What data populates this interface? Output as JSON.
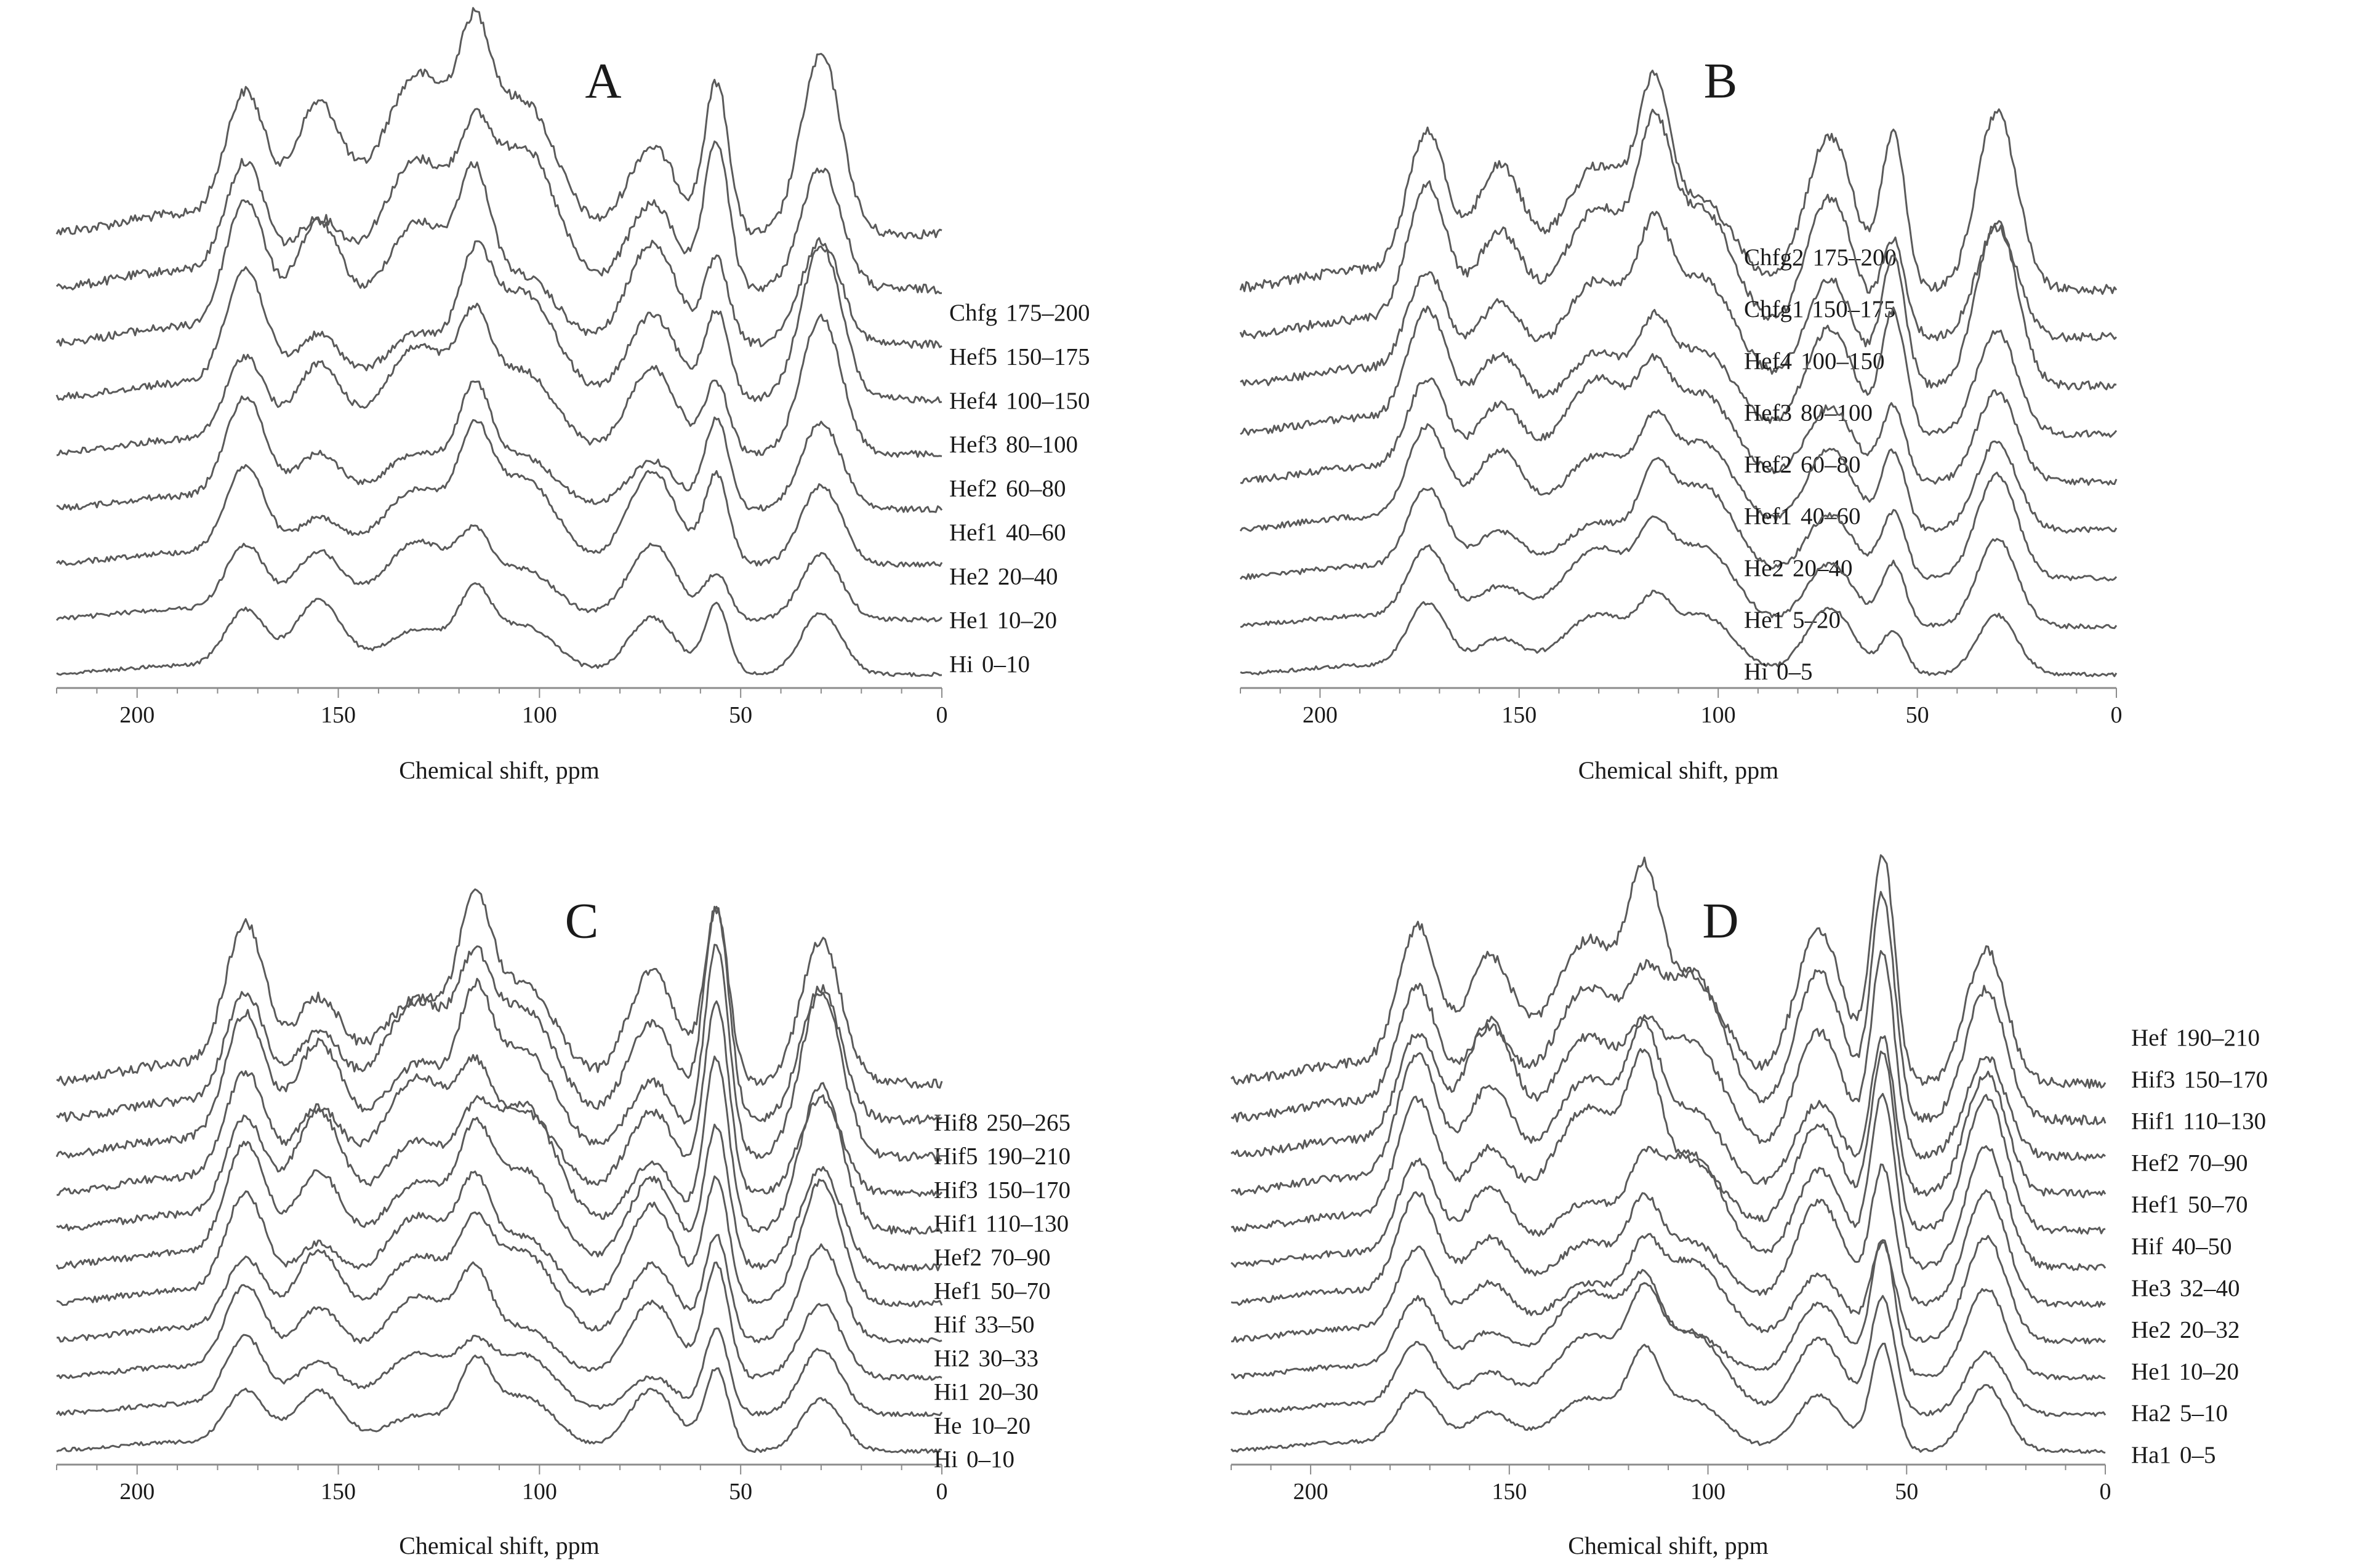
{
  "figure": {
    "xlabel": "Chemical shift, ppm",
    "x_ticks": [
      200,
      150,
      100,
      50,
      0
    ]
  },
  "colors": {
    "trace": "#5a5a5a",
    "axis": "#8c8c8c",
    "text": "#1a1a1a"
  },
  "chart_data": [
    {
      "type": "line",
      "panel": "A",
      "title": "A",
      "xlabel": "Chemical shift, ppm",
      "xlim": [
        220,
        0
      ],
      "x_ticks": [
        200,
        150,
        100,
        50,
        0
      ],
      "peaks_ppm": [
        173,
        155,
        130,
        116,
        104,
        72,
        56,
        30
      ],
      "series": [
        {
          "name": "Chfg",
          "range": "175–200"
        },
        {
          "name": "Hef5",
          "range": "150–175"
        },
        {
          "name": "Hef4",
          "range": "100–150"
        },
        {
          "name": "Hef3",
          "range": "80–100"
        },
        {
          "name": "Hef2",
          "range": "60–80"
        },
        {
          "name": "Hef1",
          "range": "40–60"
        },
        {
          "name": "He2",
          "range": "20–40"
        },
        {
          "name": "He1",
          "range": "10–20"
        },
        {
          "name": "Hi",
          "range": "0–10"
        }
      ]
    },
    {
      "type": "line",
      "panel": "B",
      "title": "B",
      "xlabel": "Chemical shift, ppm",
      "xlim": [
        220,
        0
      ],
      "x_ticks": [
        200,
        150,
        100,
        50,
        0
      ],
      "peaks_ppm": [
        173,
        155,
        130,
        116,
        104,
        72,
        56,
        30
      ],
      "series": [
        {
          "name": "Chfg2",
          "range": "175–200"
        },
        {
          "name": "Chfg1",
          "range": "150–175"
        },
        {
          "name": "Hef4",
          "range": "100–150"
        },
        {
          "name": "Hef3",
          "range": "80–100"
        },
        {
          "name": "Hef2",
          "range": "60–80"
        },
        {
          "name": "Hef1",
          "range": "40–60"
        },
        {
          "name": "He2",
          "range": "20–40"
        },
        {
          "name": "He1",
          "range": "5–20"
        },
        {
          "name": "Hi",
          "range": "0–5"
        }
      ]
    },
    {
      "type": "line",
      "panel": "C",
      "title": "C",
      "xlabel": "Chemical shift, ppm",
      "xlim": [
        220,
        0
      ],
      "x_ticks": [
        200,
        150,
        100,
        50,
        0
      ],
      "peaks_ppm": [
        173,
        155,
        130,
        116,
        104,
        72,
        56,
        30
      ],
      "series": [
        {
          "name": "Hif8",
          "range": "250–265"
        },
        {
          "name": "Hif5",
          "range": "190–210"
        },
        {
          "name": "Hif3",
          "range": "150–170"
        },
        {
          "name": "Hif1",
          "range": "110–130"
        },
        {
          "name": "Hef2",
          "range": "70–90"
        },
        {
          "name": "Hef1",
          "range": "50–70"
        },
        {
          "name": "Hif",
          "range": "33–50"
        },
        {
          "name": "Hi2",
          "range": "30–33"
        },
        {
          "name": "Hi1",
          "range": "20–30"
        },
        {
          "name": "He",
          "range": "10–20"
        },
        {
          "name": "Hi",
          "range": "0–10"
        }
      ]
    },
    {
      "type": "line",
      "panel": "D",
      "title": "D",
      "xlabel": "Chemical shift, ppm",
      "xlim": [
        220,
        0
      ],
      "x_ticks": [
        200,
        150,
        100,
        50,
        0
      ],
      "peaks_ppm": [
        173,
        155,
        130,
        116,
        104,
        72,
        56,
        30
      ],
      "series": [
        {
          "name": "Hef",
          "range": "190–210"
        },
        {
          "name": "Hif3",
          "range": "150–170"
        },
        {
          "name": "Hif1",
          "range": "110–130"
        },
        {
          "name": "Hef2",
          "range": "70–90"
        },
        {
          "name": "Hef1",
          "range": "50–70"
        },
        {
          "name": "Hif",
          "range": "40–50"
        },
        {
          "name": "He3",
          "range": "32–40"
        },
        {
          "name": "He2",
          "range": "20–32"
        },
        {
          "name": "He1",
          "range": "10–20"
        },
        {
          "name": "Ha2",
          "range": "5–10"
        },
        {
          "name": "Ha1",
          "range": "0–5"
        }
      ]
    }
  ]
}
